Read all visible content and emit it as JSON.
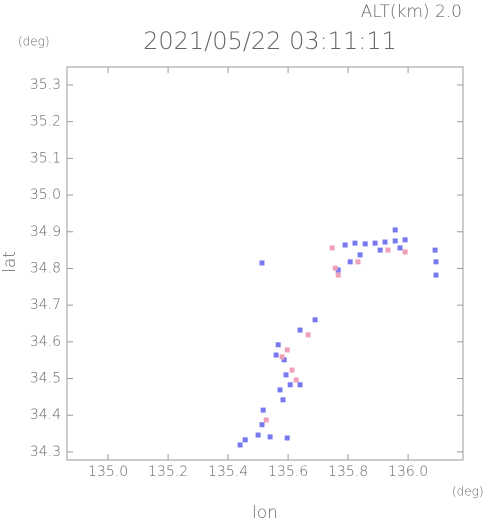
{
  "chart_data": {
    "type": "scatter",
    "title": "2021/05/22 03:11:11",
    "annotation": "ALT(km) 2.0",
    "y_unit": "(deg)",
    "x_unit": "(deg)",
    "x_label": "lon",
    "y_label": "lat",
    "xlim": [
      134.863,
      136.183
    ],
    "ylim": [
      34.278,
      35.349
    ],
    "xticks": [
      {
        "value": 135.0,
        "label": "135.0"
      },
      135.2,
      135.4,
      135.6,
      135.8,
      {
        "value": 136.0,
        "label": "136.0"
      }
    ],
    "yticks": [
      34.3,
      34.4,
      34.5,
      34.6,
      34.7,
      34.8,
      34.9,
      {
        "value": 35.0,
        "label": "35.0"
      },
      35.1,
      35.2,
      35.3
    ],
    "series": [
      {
        "color": "#7878f0",
        "x": [
          135.79,
          135.823,
          135.857,
          135.89,
          135.923,
          135.957,
          135.99,
          135.973,
          135.907,
          135.84,
          135.807,
          135.767,
          135.957,
          136.09,
          136.093,
          136.093,
          135.513,
          135.64,
          135.69,
          135.567,
          135.56,
          135.587,
          135.593,
          135.607,
          135.583,
          135.573,
          135.517,
          135.513,
          135.5,
          135.457,
          135.44,
          135.54,
          135.597,
          135.64
        ],
        "y": [
          34.864,
          34.869,
          34.867,
          34.869,
          34.872,
          34.875,
          34.878,
          34.856,
          34.85,
          34.837,
          34.818,
          34.796,
          34.905,
          34.85,
          34.818,
          34.782,
          34.815,
          34.632,
          34.66,
          34.592,
          34.564,
          34.551,
          34.51,
          34.483,
          34.442,
          34.469,
          34.414,
          34.374,
          34.346,
          34.333,
          34.319,
          34.341,
          34.338,
          34.483
        ]
      },
      {
        "color": "#f0a0b8",
        "x": [
          135.767,
          135.747,
          135.833,
          135.933,
          135.99,
          135.597,
          135.58,
          135.613,
          135.627,
          135.527,
          135.757,
          135.667
        ],
        "y": [
          34.782,
          34.856,
          34.818,
          34.85,
          34.845,
          34.578,
          34.559,
          34.523,
          34.496,
          34.387,
          34.801,
          34.619
        ]
      }
    ]
  }
}
